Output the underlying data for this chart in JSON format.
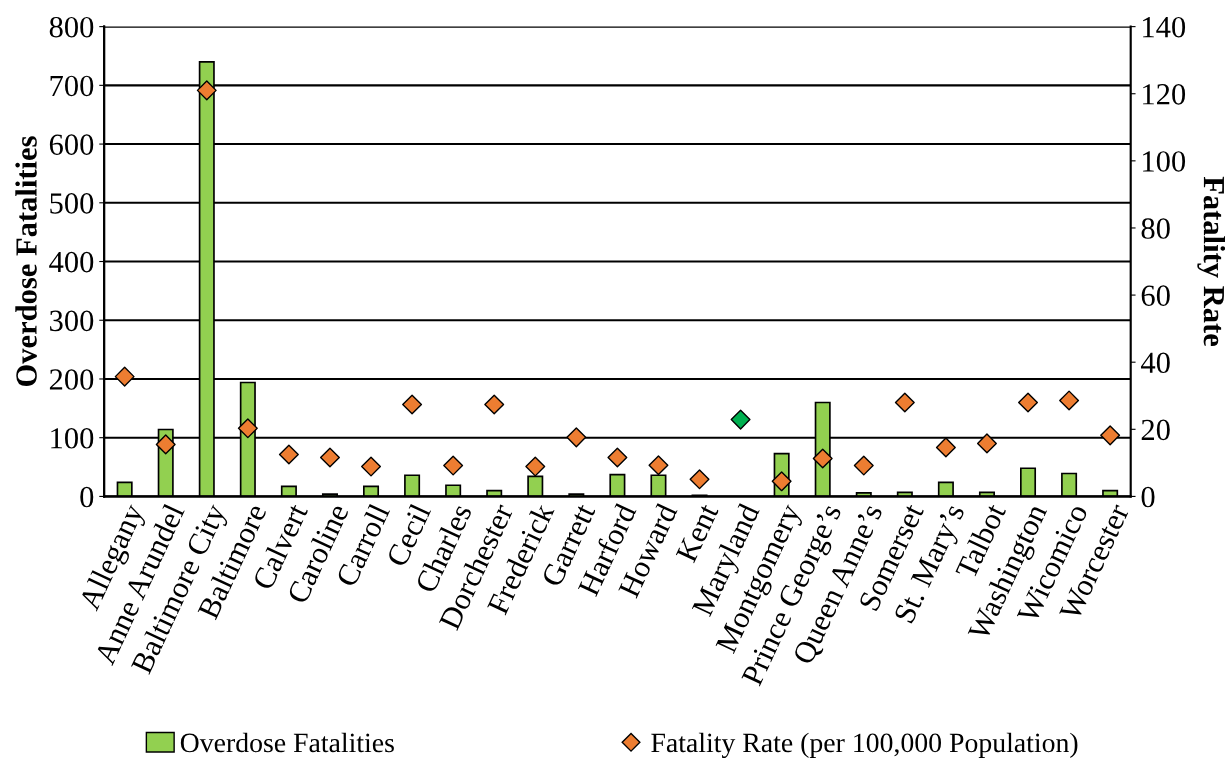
{
  "chart_data": {
    "type": "bar",
    "ylabel": "Overdose Fatalities",
    "y2label": "Fatality Rate",
    "categories": [
      "Allegany",
      "Anne Arundel",
      "Baltimore City",
      "Baltimore",
      "Calvert",
      "Caroline",
      "Carroll",
      "Cecil",
      "Charles",
      "Dorchester",
      "Frederick",
      "Garrett",
      "Harford",
      "Howard",
      "Kent",
      "Maryland",
      "Montgomery",
      "Prince George’s",
      "Queen Anne’s",
      "Somerset",
      "St. Mary’s",
      "Talbot",
      "Washington",
      "Wicomico",
      "Worcester"
    ],
    "series": [
      {
        "name": "Overdose Fatalities",
        "color": "#92d050",
        "values": [
          24,
          114,
          740,
          194,
          17,
          4,
          17,
          36,
          19,
          10,
          34,
          4,
          37,
          36,
          2,
          null,
          73,
          160,
          6,
          7,
          24,
          7,
          48,
          39,
          10
        ]
      },
      {
        "name": "Fatality Rate (per 100,000 Population)",
        "type": "scatter",
        "axis": "y2",
        "marker": "diamond",
        "color": "#ed7d31",
        "colors": [
          "#ed7d31",
          "#ed7d31",
          "#ed7d31",
          "#ed7d31",
          "#ed7d31",
          "#ed7d31",
          "#ed7d31",
          "#ed7d31",
          "#ed7d31",
          "#ed7d31",
          "#ed7d31",
          "#ed7d31",
          "#ed7d31",
          "#ed7d31",
          "#ed7d31",
          "#00b050",
          "#ed7d31",
          "#ed7d31",
          "#ed7d31",
          "#ed7d31",
          "#ed7d31",
          "#ed7d31",
          "#ed7d31",
          "#ed7d31",
          "#ed7d31"
        ],
        "values": [
          35.7,
          15.5,
          121,
          20.3,
          12.5,
          11.6,
          8.9,
          27.4,
          9.2,
          27.4,
          8.9,
          17.6,
          11.6,
          9.3,
          5.1,
          22.9,
          4.5,
          11.3,
          9.2,
          28,
          14.6,
          15.8,
          28,
          28.6,
          18.2
        ]
      }
    ],
    "ylim": [
      0,
      800
    ],
    "yticks": [
      0,
      100,
      200,
      300,
      400,
      500,
      600,
      700,
      800
    ],
    "y2lim": [
      0,
      140
    ],
    "y2ticks": [
      0,
      20,
      40,
      60,
      80,
      100,
      120,
      140
    ],
    "grid": "y",
    "legend": "bottom"
  }
}
